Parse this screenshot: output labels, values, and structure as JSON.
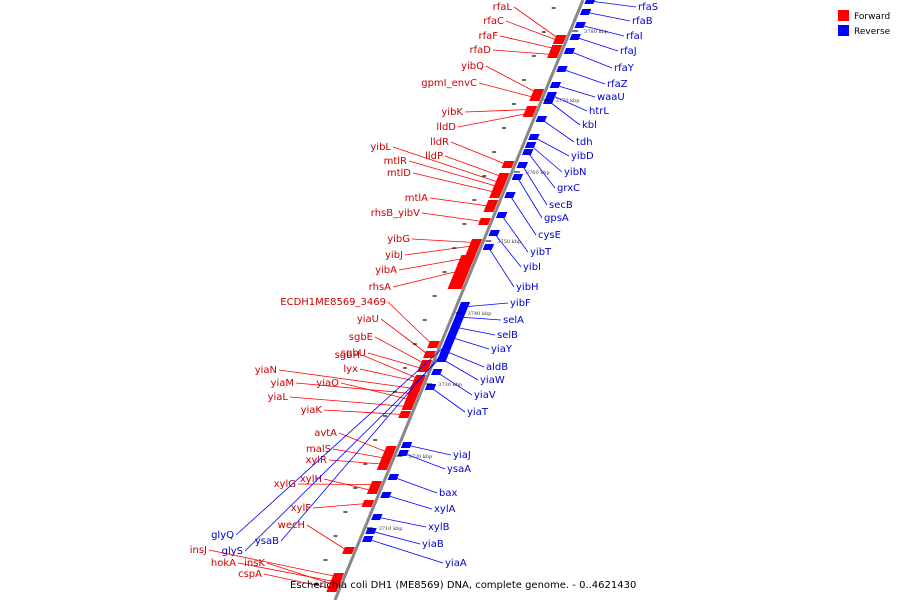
{
  "title": "Escherichia coli DH1 (ME8569) DNA, complete genome. - 0..4621430",
  "legend": {
    "forward": {
      "label": "Forward",
      "color": "#ff0000"
    },
    "reverse": {
      "label": "Reverse",
      "color": "#0000ff"
    }
  },
  "ticks": [
    "3780 kbp",
    "3770 kbp",
    "3760 kbp",
    "3750 kbp",
    "3740 kbp",
    "3730 kbp",
    "3720 kbp",
    "3710 kbp"
  ],
  "forward_genes": [
    "rfaL",
    "rfaC",
    "rfaF",
    "rfaD",
    "yibQ",
    "gpmI_envC",
    "yibK",
    "lldD",
    "lldR",
    "lldP",
    "yibL",
    "mtlR",
    "mtlD",
    "mtlA",
    "rhsB_yibV",
    "yibG",
    "yibJ",
    "yibA",
    "rhsA",
    "ECDH1ME8569_3469",
    "yiaU",
    "sgbE",
    "sgbU",
    "sgbH",
    "lyx",
    "yiaN",
    "yiaM",
    "yiaO",
    "yiaL",
    "yiaK",
    "avtA",
    "malS",
    "xylR",
    "xylG",
    "xylH",
    "xylF",
    "wecH",
    "insJ",
    "hokA",
    "insK",
    "cspA"
  ],
  "reverse_genes": [
    "rfaS",
    "rfaB",
    "rfaI",
    "rfaJ",
    "rfaY",
    "rfaZ",
    "waaU",
    "htrL",
    "kbl",
    "tdh",
    "yibD",
    "yibN",
    "grxC",
    "secB",
    "gpsA",
    "cysE",
    "yibT",
    "yibI",
    "yibH",
    "yibF",
    "selA",
    "selB",
    "yiaY",
    "aldB",
    "yiaW",
    "yiaV",
    "yiaT",
    "yiaJ",
    "ysaA",
    "bax",
    "xylA",
    "xylB",
    "yiaB",
    "glyQ",
    "ysaB",
    "glyS",
    "yiaA"
  ]
}
